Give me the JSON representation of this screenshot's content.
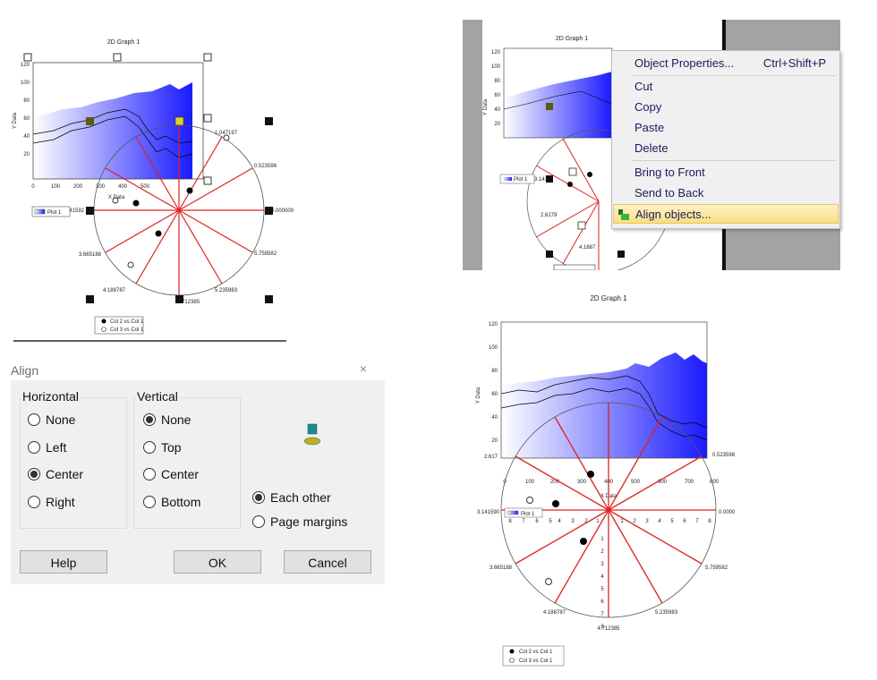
{
  "graph_tl": {
    "title": "2D Graph 1",
    "y_axis_label": "Y Data",
    "x_axis_label": "X Data",
    "y_ticks": [
      "120",
      "100",
      "80",
      "60",
      "40",
      "20"
    ],
    "x_ticks": [
      "0",
      "100",
      "200",
      "300",
      "400",
      "500"
    ],
    "legend_plot": "Plot 1",
    "polar_labels": [
      "1.047197",
      "0.523598",
      "0.000000",
      "5.759582",
      "5.235983",
      "4.712385",
      "4.188787",
      "3.665188",
      "3.141592"
    ],
    "legend_lines": [
      "Col 2 vs Col 1",
      "Col 3 vs Col 1"
    ]
  },
  "graph_tr": {
    "title": "2D Graph 1",
    "y_axis_label": "Y Data",
    "y_ticks": [
      "120",
      "100",
      "80",
      "60",
      "40",
      "20"
    ],
    "polar_labels": [
      "3.1415",
      "2.6179",
      "4.1887"
    ],
    "legend_plot": "Plot 1"
  },
  "context_menu": {
    "items": [
      {
        "label": "Object Properties...",
        "shortcut": "Ctrl+Shift+P"
      },
      {
        "label": "Cut"
      },
      {
        "label": "Copy"
      },
      {
        "label": "Paste"
      },
      {
        "label": "Delete"
      },
      {
        "label": "Bring to Front"
      },
      {
        "label": "Send to Back"
      },
      {
        "label": "Align objects..."
      }
    ]
  },
  "align_dialog": {
    "title": "Align",
    "close_glyph": "×",
    "horizontal": {
      "label": "Horizontal",
      "options": [
        "None",
        "Left",
        "Center",
        "Right"
      ],
      "selected": "Center"
    },
    "vertical": {
      "label": "Vertical",
      "options": [
        "None",
        "Top",
        "Center",
        "Bottom"
      ],
      "selected": "None"
    },
    "relative": {
      "options": [
        "Each other",
        "Page margins"
      ],
      "selected": "Each other"
    },
    "buttons": {
      "help": "Help",
      "ok": "OK",
      "cancel": "Cancel"
    }
  },
  "graph_br": {
    "title": "2D Graph 1",
    "y_axis_label": "Y Data",
    "x_axis_label": "X Data",
    "y_ticks": [
      "120",
      "100",
      "80",
      "60",
      "40",
      "20"
    ],
    "x_ticks": [
      "0",
      "100",
      "200",
      "300",
      "400",
      "500",
      "600",
      "700",
      "800"
    ],
    "radial_ticks_left": [
      "8",
      "7",
      "6",
      "5",
      "4",
      "3",
      "2",
      "1"
    ],
    "radial_ticks_right": [
      "1",
      "2",
      "3",
      "4",
      "5",
      "6",
      "7",
      "8"
    ],
    "radial_ticks_down": [
      "1",
      "2",
      "3",
      "4",
      "5",
      "6",
      "7",
      "8"
    ],
    "polar_labels": {
      "a0": "0.0000",
      "a30": "0.523598",
      "a180": "3.141590",
      "a210": "3.665188",
      "a240": "4.188787",
      "a270": "4.712385",
      "a300": "5.235983",
      "a330": "5.759582",
      "top_left": "2.617"
    },
    "legend_plot": "Plot 1",
    "legend_lines": [
      "Col 2 vs Col 1",
      "Col 3 vs Col 1"
    ]
  },
  "colors": {
    "accent_blue": "#1a1aff",
    "polar_red": "#e02020",
    "menu_highlight": "#f9df80",
    "gray_panel": "#a3a3a3"
  }
}
